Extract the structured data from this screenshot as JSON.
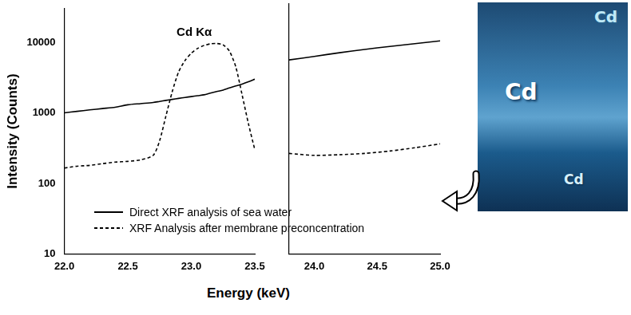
{
  "chart_data": [
    {
      "type": "line",
      "ylabel": "Intensity (Counts)",
      "xlabel": "Energy (keV)",
      "annotation": "Cd Kα",
      "log": "y",
      "grid": false,
      "legend": "lower left",
      "xlim": [
        22,
        23.5
      ],
      "xticks": [
        {
          "value": 22,
          "label": "22.0"
        },
        {
          "value": 22.5,
          "label": "22.5"
        },
        {
          "value": 23,
          "label": "23.0"
        },
        23.5
      ],
      "ylim": [
        10,
        30000
      ],
      "yticks": [
        10,
        100,
        1000,
        10000
      ],
      "x": [
        22.0,
        22.1,
        22.2,
        22.3,
        22.4,
        22.5,
        22.6,
        22.7,
        22.75,
        22.8,
        22.85,
        22.9,
        22.95,
        23.0,
        23.05,
        23.1,
        23.15,
        23.2,
        23.25,
        23.3,
        23.35,
        23.4,
        23.45,
        23.5
      ],
      "series": [
        {
          "name": "Direct XRF analysis of sea water",
          "color": "#000000",
          "line_style": "solid",
          "values": [
            1000,
            1050,
            1100,
            1150,
            1200,
            1300,
            1350,
            1400,
            1450,
            1500,
            1550,
            1600,
            1650,
            1700,
            1750,
            1800,
            1900,
            2000,
            2100,
            2250,
            2400,
            2550,
            2750,
            3000
          ]
        },
        {
          "name": "XRF Analysis after membrane preconcentration",
          "color": "#000000",
          "line_style": "dashed",
          "values": [
            165,
            175,
            180,
            190,
            200,
            205,
            215,
            250,
            400,
            900,
            2000,
            3800,
            5500,
            7000,
            8200,
            9000,
            9500,
            9600,
            9200,
            7500,
            4500,
            1800,
            700,
            300
          ]
        }
      ]
    },
    {
      "type": "line",
      "log": "y",
      "grid": false,
      "tick_labels": "x",
      "xlim": [
        23.8,
        25
      ],
      "xticks": [
        {
          "value": 24,
          "label": "24.0"
        },
        {
          "value": 24.5,
          "label": "24.5"
        },
        {
          "value": 25,
          "label": "25.0"
        }
      ],
      "ylim": [
        10,
        30000
      ],
      "yticks": [
        10,
        100,
        1000,
        10000
      ],
      "x": [
        23.8,
        24.0,
        24.2,
        24.4,
        24.6,
        24.8,
        25.0
      ],
      "series": [
        {
          "name": "Direct XRF analysis of sea water",
          "color": "#000000",
          "line_style": "solid",
          "values": [
            5000,
            5600,
            6300,
            7000,
            7700,
            8400,
            9200
          ]
        },
        {
          "name": "XRF Analysis after membrane preconcentration",
          "color": "#000000",
          "line_style": "dashed",
          "values": [
            250,
            235,
            240,
            250,
            270,
            300,
            340
          ]
        }
      ]
    }
  ],
  "image": {
    "labels": [
      "Cd",
      "Cd",
      "Cd"
    ]
  }
}
